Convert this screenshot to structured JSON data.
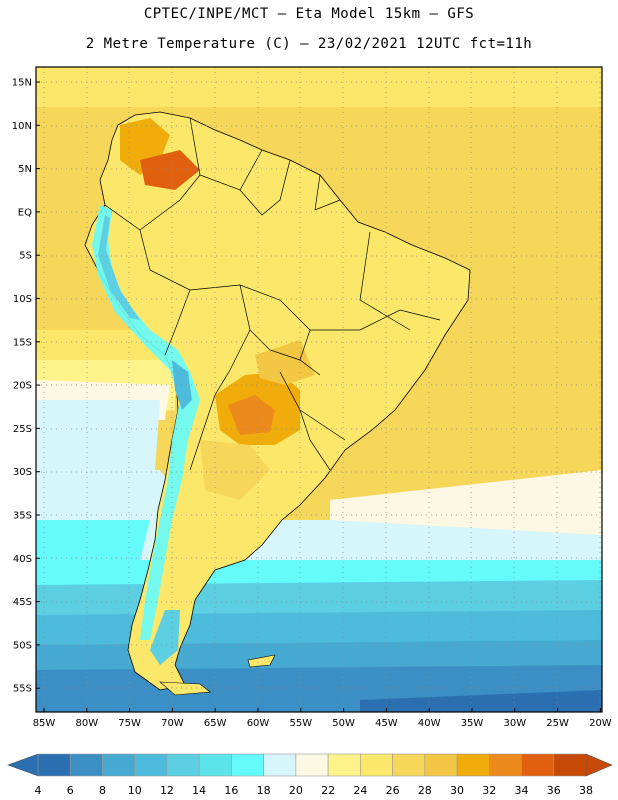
{
  "header": {
    "line1": "CPTEC/INPE/MCT —  Eta Model 15km — GFS",
    "line2": "2 Metre Temperature (C) — 23/02/2021 12UTC fct=11h"
  },
  "lat_labels": [
    "15N",
    "10N",
    "5N",
    "EQ",
    "5S",
    "10S",
    "15S",
    "20S",
    "25S",
    "30S",
    "35S",
    "40S",
    "45S",
    "50S",
    "55S"
  ],
  "lon_labels": [
    "85W",
    "80W",
    "75W",
    "70W",
    "65W",
    "60W",
    "55W",
    "50W",
    "45W",
    "40W",
    "35W",
    "30W",
    "25W",
    "20W"
  ],
  "colorbar": {
    "labels": [
      "4",
      "6",
      "8",
      "10",
      "12",
      "14",
      "16",
      "18",
      "20",
      "22",
      "24",
      "26",
      "28",
      "30",
      "32",
      "34",
      "36",
      "38"
    ],
    "colors": [
      "#2c6fb0",
      "#3b8fc4",
      "#45a9d1",
      "#4dbcdc",
      "#5ccfe2",
      "#5de4ea",
      "#66fbfb",
      "#d7f6fb",
      "#fdf8e3",
      "#fdf38a",
      "#fbe76a",
      "#f6d75a",
      "#f2c744",
      "#f0ac0a",
      "#ec8a1c",
      "#e06010",
      "#c64a06"
    ],
    "left_arrow_color": "#2c6fb0",
    "right_arrow_color": "#c64a06"
  },
  "colors": {
    "ocean_warm": "#f6d75a",
    "ocean_pale": "#fdf8e3",
    "ocean_mild": "#d7f6fb",
    "ocean_cool": "#5ccfe2",
    "ocean_cold": "#45a9d1",
    "ocean_colder": "#3b8fc4",
    "land_warm": "#fbe76a",
    "land_hot": "#f0ac0a",
    "land_hotter": "#e06010",
    "andes": "#66fbfb"
  }
}
